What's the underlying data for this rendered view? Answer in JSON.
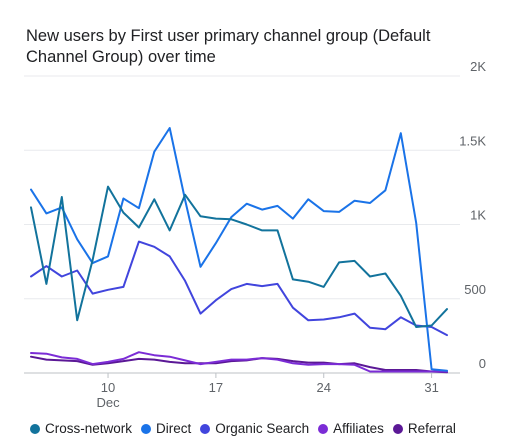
{
  "chart_data": {
    "type": "line",
    "title": "New users by First user primary channel group (Default Channel Group) over time",
    "x_tick_labels": [
      {
        "day": 10,
        "label": "10",
        "sublabel": "Dec"
      },
      {
        "day": 17,
        "label": "17",
        "sublabel": ""
      },
      {
        "day": 24,
        "label": "24",
        "sublabel": ""
      },
      {
        "day": 31,
        "label": "31",
        "sublabel": ""
      }
    ],
    "x_range": [
      5,
      32
    ],
    "y_ticks": [
      {
        "value": 2000,
        "label": "2K"
      },
      {
        "value": 1500,
        "label": "1.5K"
      },
      {
        "value": 1000,
        "label": "1K"
      },
      {
        "value": 500,
        "label": "500"
      },
      {
        "value": 0,
        "label": "0"
      }
    ],
    "ylim": [
      0,
      2000
    ],
    "grid": true,
    "legend_position": "bottom",
    "x": [
      5,
      6,
      7,
      8,
      9,
      10,
      11,
      12,
      13,
      14,
      15,
      16,
      17,
      18,
      19,
      20,
      21,
      22,
      23,
      24,
      25,
      26,
      27,
      28,
      29,
      30,
      31,
      32
    ],
    "series": [
      {
        "name": "Cross-network",
        "color": "#12739c",
        "values": [
          1115,
          600,
          1185,
          355,
          760,
          1255,
          1080,
          980,
          1170,
          960,
          1200,
          1055,
          1040,
          1035,
          1000,
          960,
          960,
          630,
          615,
          580,
          745,
          755,
          650,
          670,
          520,
          310,
          320,
          430
        ]
      },
      {
        "name": "Direct",
        "color": "#1a73e8",
        "values": [
          1235,
          1075,
          1115,
          900,
          740,
          785,
          1175,
          1110,
          1490,
          1650,
          1165,
          715,
          875,
          1050,
          1140,
          1100,
          1125,
          1040,
          1170,
          1090,
          1085,
          1160,
          1145,
          1230,
          1615,
          1010,
          25,
          15
        ]
      },
      {
        "name": "Organic Search",
        "color": "#4145dd",
        "values": [
          650,
          720,
          650,
          690,
          535,
          560,
          580,
          885,
          850,
          785,
          620,
          400,
          490,
          565,
          600,
          585,
          600,
          440,
          355,
          360,
          375,
          400,
          305,
          295,
          375,
          320,
          310,
          255
        ]
      },
      {
        "name": "Affiliates",
        "color": "#7b2cd6",
        "values": [
          135,
          130,
          105,
          95,
          60,
          75,
          95,
          140,
          120,
          110,
          85,
          60,
          75,
          90,
          90,
          100,
          90,
          65,
          55,
          60,
          60,
          55,
          10,
          10,
          10,
          10,
          10,
          10
        ]
      },
      {
        "name": "Referral",
        "color": "#5b1896",
        "values": [
          110,
          90,
          85,
          80,
          55,
          65,
          80,
          95,
          90,
          75,
          65,
          65,
          65,
          80,
          85,
          100,
          95,
          80,
          70,
          70,
          60,
          65,
          40,
          20,
          20,
          20,
          10,
          5
        ]
      }
    ]
  }
}
